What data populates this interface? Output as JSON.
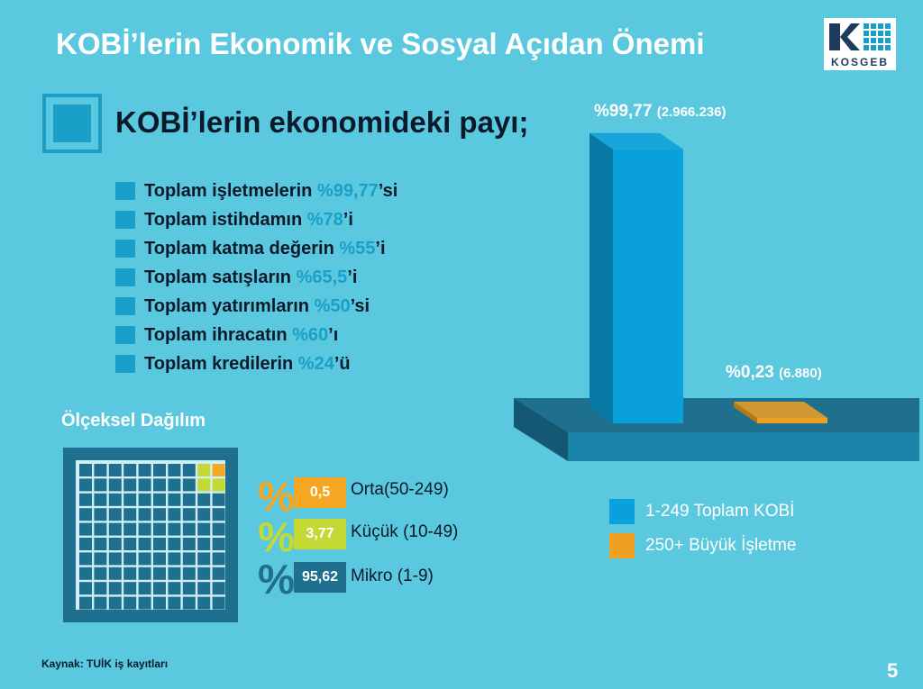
{
  "title": "KOBİ’lerin Ekonomik ve Sosyal Açıdan Önemi",
  "logo": {
    "text": "KOSGEB"
  },
  "section": {
    "heading": "KOBİ’lerin ekonomideki payı;"
  },
  "bullets": [
    {
      "prefix": "Toplam işletmelerin ",
      "value": "%99,77",
      "suffix": "’si"
    },
    {
      "prefix": "Toplam istihdamın ",
      "value": "%78",
      "suffix": "’i"
    },
    {
      "prefix": "Toplam katma değerin ",
      "value": "%55",
      "suffix": "’i"
    },
    {
      "prefix": "Toplam satışların ",
      "value": "%65,5",
      "suffix": "’i"
    },
    {
      "prefix": "Toplam yatırımların ",
      "value": "%50",
      "suffix": "’si"
    },
    {
      "prefix": "Toplam ihracatın ",
      "value": "%60",
      "suffix": "’ı"
    },
    {
      "prefix": "Toplam kredilerin ",
      "value": "%24",
      "suffix": "’ü"
    }
  ],
  "scale": {
    "heading": "Ölçeksel Dağılım",
    "items": [
      {
        "value": "0,5",
        "label": "Orta(50-249)",
        "color": "#f5a623"
      },
      {
        "value": "3,77",
        "label": "Küçük (10-49)",
        "color": "#c4d934"
      },
      {
        "value": "95,62",
        "label": "Mikro (1-9)",
        "color": "#1f6f8f"
      }
    ]
  },
  "chart_data": {
    "type": "bar",
    "categories": [
      "1-249 Toplam KOBİ",
      "250+ Büyük İşletme"
    ],
    "values": [
      99.77,
      0.23
    ],
    "counts": [
      "2.966.236",
      "6.880"
    ],
    "labels": [
      "%99,77",
      "%0,23"
    ],
    "colors": [
      "#0aa0dc",
      "#f0a020"
    ],
    "ylim": [
      0,
      100
    ]
  },
  "legend": [
    {
      "label": "1-249 Toplam KOBİ",
      "color": "#0aa0dc"
    },
    {
      "label": "250+ Büyük İşletme",
      "color": "#f0a020"
    }
  ],
  "source": "Kaynak: TUİK iş kayıtları",
  "page_number": "5"
}
